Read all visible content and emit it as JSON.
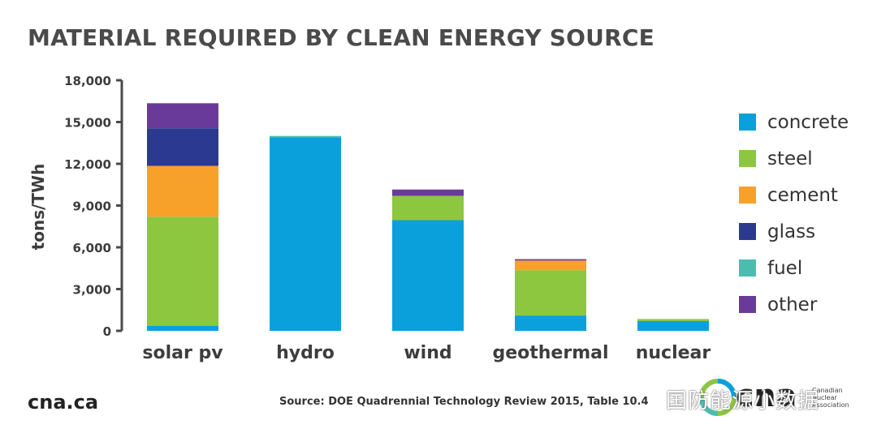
{
  "chart_data": {
    "type": "bar",
    "stacked": true,
    "title": "MATERIAL REQUIRED BY CLEAN ENERGY SOURCE",
    "ylabel": "tons/TWh",
    "ylim": [
      0,
      18000
    ],
    "yticks": [
      0,
      3000,
      6000,
      9000,
      12000,
      15000,
      18000
    ],
    "ytick_labels": [
      "0",
      "3,000",
      "6,000",
      "9,000",
      "12,000",
      "15,000",
      "18,000"
    ],
    "categories": [
      "solar pv",
      "hydro",
      "wind",
      "geothermal",
      "nuclear"
    ],
    "series": [
      {
        "name": "concrete",
        "color": "#0aa0dc",
        "values": [
          350,
          13900,
          7950,
          1100,
          700
        ]
      },
      {
        "name": "steel",
        "color": "#8dc63f",
        "values": [
          7850,
          0,
          1750,
          3250,
          150
        ]
      },
      {
        "name": "cement",
        "color": "#f7a12a",
        "values": [
          3650,
          0,
          0,
          700,
          0
        ]
      },
      {
        "name": "glass",
        "color": "#2b3a90",
        "values": [
          2700,
          0,
          0,
          0,
          0
        ]
      },
      {
        "name": "fuel",
        "color": "#4bbcb0",
        "values": [
          0,
          100,
          0,
          0,
          0
        ]
      },
      {
        "name": "other",
        "color": "#6a3a9a",
        "values": [
          1800,
          0,
          450,
          100,
          0
        ]
      }
    ],
    "legend_position": "right",
    "grid": false
  },
  "footer": {
    "brand": "cna.ca",
    "source": "Source: DOE Quadrennial Technology Review 2015, Table 10.4",
    "logo_text": "cna",
    "logo_sub": "Canadian Nuclear Association",
    "watermark": "国防能源小数据"
  },
  "colors": {
    "axis": "#4a4a4a",
    "title": "#4a4a4a"
  }
}
